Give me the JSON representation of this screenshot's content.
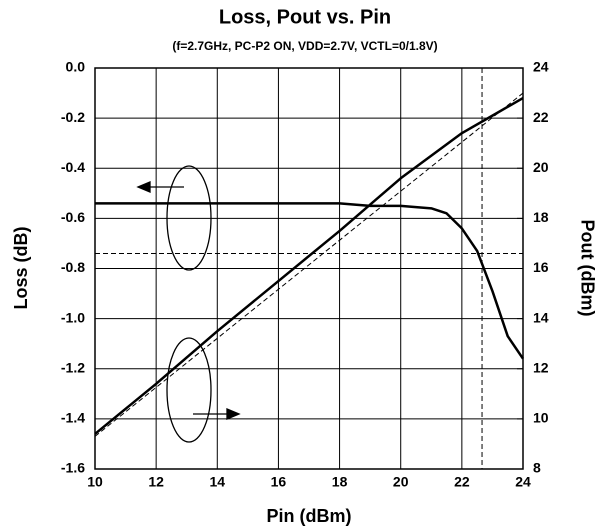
{
  "chart_data": {
    "type": "line",
    "title": "Loss, Pout vs. Pin",
    "subtitle": "(f=2.7GHz, PC-P2 ON, VDD=2.7V, VCTL=0/1.8V)",
    "x_label": "Pin (dBm)",
    "y_label": "Loss (dB)",
    "y2_label": "Pout (dBm)",
    "xlim": [
      10,
      24
    ],
    "xticks": [
      10,
      12,
      14,
      16,
      18,
      20,
      22,
      24
    ],
    "ylim": [
      -1.6,
      0
    ],
    "yticks": [
      {
        "value": 0,
        "label": "0.0"
      },
      -0.2,
      -0.4,
      -0.6,
      -0.8,
      {
        "value": -1.0,
        "label": "-1.0"
      },
      -1.2,
      -1.4,
      -1.6
    ],
    "y2lim": [
      8,
      24
    ],
    "y2ticks": [
      24,
      22,
      20,
      18,
      16,
      14,
      12,
      10,
      8
    ],
    "grid": true,
    "series": [
      {
        "axis": "y",
        "color": "#000000",
        "style": "solid",
        "x": [
          10,
          12,
          14,
          16,
          18,
          19,
          20,
          21,
          21.5,
          22,
          22.5,
          23,
          23.5,
          24
        ],
        "values": [
          -0.54,
          -0.54,
          -0.54,
          -0.54,
          -0.54,
          -0.55,
          -0.55,
          -0.56,
          -0.58,
          -0.64,
          -0.73,
          -0.89,
          -1.07,
          -1.16
        ]
      },
      {
        "axis": "y2",
        "color": "#000000",
        "style": "solid",
        "x": [
          10,
          12,
          14,
          16,
          18,
          20,
          22,
          23,
          24
        ],
        "values": [
          9.4,
          11.4,
          13.5,
          15.5,
          17.5,
          19.6,
          21.4,
          22.1,
          22.8
        ]
      },
      {
        "axis": "y2",
        "color": "#000000",
        "style": "dashed",
        "x": [
          10,
          24
        ],
        "values": [
          9.3,
          23.0
        ]
      }
    ],
    "hlines": [
      {
        "value": -0.74,
        "style": "dashed"
      }
    ],
    "vlines": [
      {
        "value": 22.66,
        "style": "dashed"
      }
    ]
  }
}
